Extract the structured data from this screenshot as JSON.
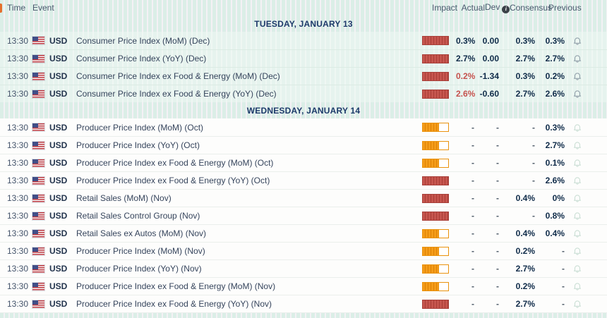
{
  "header": {
    "time": "Time",
    "event": "Event",
    "impact": "Impact",
    "actual": "Actual",
    "dev": "Dev",
    "dev_info": "i",
    "consensus": "Consensus",
    "previous": "Previous"
  },
  "colors": {
    "impact_high": "#c6554e",
    "impact_medium": "#f49c19",
    "negative_actual": "#c5524e",
    "value_text": "#0f2b49",
    "date_text": "#1d3a6a",
    "past_row_bg": "#e6f3ee",
    "future_row_bg": "#fdfdfc"
  },
  "icons": {
    "flag": "us-flag",
    "alert": "bell-outline",
    "dev_info": "info-circle"
  },
  "days": [
    {
      "date_label": "TUESDAY, JANUARY 13",
      "rows": [
        {
          "time": "13:30",
          "currency": "USD",
          "event": "Consumer Price Index (MoM) (Dec)",
          "impact": "high",
          "actual": "0.3%",
          "actual_style": "normal",
          "dev": "0.00",
          "consensus": "0.3%",
          "previous": "0.3%"
        },
        {
          "time": "13:30",
          "currency": "USD",
          "event": "Consumer Price Index (YoY) (Dec)",
          "impact": "high",
          "actual": "2.7%",
          "actual_style": "normal",
          "dev": "0.00",
          "consensus": "2.7%",
          "previous": "2.7%"
        },
        {
          "time": "13:30",
          "currency": "USD",
          "event": "Consumer Price Index ex Food & Energy (MoM) (Dec)",
          "impact": "high",
          "actual": "0.2%",
          "actual_style": "miss",
          "dev": "-1.34",
          "consensus": "0.3%",
          "previous": "0.2%"
        },
        {
          "time": "13:30",
          "currency": "USD",
          "event": "Consumer Price Index ex Food & Energy (YoY) (Dec)",
          "impact": "high",
          "actual": "2.6%",
          "actual_style": "miss",
          "dev": "-0.60",
          "consensus": "2.7%",
          "previous": "2.6%"
        }
      ]
    },
    {
      "date_label": "WEDNESDAY, JANUARY 14",
      "rows": [
        {
          "time": "13:30",
          "currency": "USD",
          "event": "Producer Price Index (MoM) (Oct)",
          "impact": "medium",
          "actual": "-",
          "actual_style": "normal",
          "dev": "-",
          "consensus": "-",
          "previous": "0.3%"
        },
        {
          "time": "13:30",
          "currency": "USD",
          "event": "Producer Price Index (YoY) (Oct)",
          "impact": "medium",
          "actual": "-",
          "actual_style": "normal",
          "dev": "-",
          "consensus": "-",
          "previous": "2.7%"
        },
        {
          "time": "13:30",
          "currency": "USD",
          "event": "Producer Price Index ex Food & Energy (MoM) (Oct)",
          "impact": "medium",
          "actual": "-",
          "actual_style": "normal",
          "dev": "-",
          "consensus": "-",
          "previous": "0.1%"
        },
        {
          "time": "13:30",
          "currency": "USD",
          "event": "Producer Price Index ex Food & Energy (YoY) (Oct)",
          "impact": "high",
          "actual": "-",
          "actual_style": "normal",
          "dev": "-",
          "consensus": "-",
          "previous": "2.6%"
        },
        {
          "time": "13:30",
          "currency": "USD",
          "event": "Retail Sales (MoM) (Nov)",
          "impact": "high",
          "actual": "-",
          "actual_style": "normal",
          "dev": "-",
          "consensus": "0.4%",
          "previous": "0%"
        },
        {
          "time": "13:30",
          "currency": "USD",
          "event": "Retail Sales Control Group (Nov)",
          "impact": "high",
          "actual": "-",
          "actual_style": "normal",
          "dev": "-",
          "consensus": "-",
          "previous": "0.8%"
        },
        {
          "time": "13:30",
          "currency": "USD",
          "event": "Retail Sales ex Autos (MoM) (Nov)",
          "impact": "medium",
          "actual": "-",
          "actual_style": "normal",
          "dev": "-",
          "consensus": "0.4%",
          "previous": "0.4%"
        },
        {
          "time": "13:30",
          "currency": "USD",
          "event": "Producer Price Index (MoM) (Nov)",
          "impact": "medium",
          "actual": "-",
          "actual_style": "normal",
          "dev": "-",
          "consensus": "0.2%",
          "previous": "-"
        },
        {
          "time": "13:30",
          "currency": "USD",
          "event": "Producer Price Index (YoY) (Nov)",
          "impact": "medium",
          "actual": "-",
          "actual_style": "normal",
          "dev": "-",
          "consensus": "2.7%",
          "previous": "-"
        },
        {
          "time": "13:30",
          "currency": "USD",
          "event": "Producer Price Index ex Food & Energy (MoM) (Nov)",
          "impact": "medium",
          "actual": "-",
          "actual_style": "normal",
          "dev": "-",
          "consensus": "0.2%",
          "previous": "-"
        },
        {
          "time": "13:30",
          "currency": "USD",
          "event": "Producer Price Index ex Food & Energy (YoY) (Nov)",
          "impact": "high",
          "actual": "-",
          "actual_style": "normal",
          "dev": "-",
          "consensus": "2.7%",
          "previous": "-"
        }
      ]
    }
  ]
}
